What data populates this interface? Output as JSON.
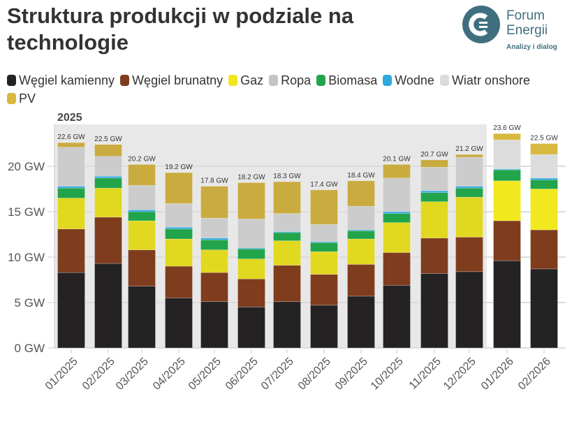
{
  "title": "Struktura produkcji w podziale na technologie",
  "logo": {
    "line1": "Forum",
    "line2": "Energii",
    "tagline": "Analizy i dialog"
  },
  "chart_data": {
    "type": "bar",
    "stacked": true,
    "title": "Struktura produkcji w podziale na technologie",
    "period_label": "2025",
    "categories": [
      "01/2025",
      "02/2025",
      "03/2025",
      "04/2025",
      "05/2025",
      "06/2025",
      "07/2025",
      "08/2025",
      "09/2025",
      "10/2025",
      "11/2025",
      "12/2025",
      "01/2026",
      "02/2026"
    ],
    "totals": [
      "22.6 GW",
      "22.5 GW",
      "20.2 GW",
      "19.2 GW",
      "17.8 GW",
      "18.2 GW",
      "18.3 GW",
      "17.4 GW",
      "18.4 GW",
      "20.1 GW",
      "20.7 GW",
      "21.2 GW",
      "23.6 GW",
      "22.5 GW"
    ],
    "series": [
      {
        "name": "Węgiel kamienny",
        "color": "#242223",
        "values": [
          8.3,
          9.3,
          6.8,
          5.5,
          5.1,
          4.5,
          5.1,
          4.7,
          5.7,
          6.9,
          8.2,
          8.4,
          9.6,
          8.7
        ]
      },
      {
        "name": "Węgiel brunatny",
        "color": "#7f3d1e",
        "values": [
          4.8,
          5.1,
          4.0,
          3.5,
          3.2,
          3.1,
          4.0,
          3.4,
          3.5,
          3.6,
          3.9,
          3.8,
          4.4,
          4.3
        ]
      },
      {
        "name": "Gaz",
        "color": "#e1d820",
        "values": [
          3.4,
          3.2,
          3.2,
          3.0,
          2.5,
          2.2,
          2.7,
          2.5,
          2.8,
          3.3,
          4.0,
          4.4,
          4.4,
          4.5
        ]
      },
      {
        "name": "Biomasa",
        "color": "#22a44a",
        "values": [
          1.1,
          1.1,
          1.0,
          1.1,
          1.1,
          1.1,
          0.9,
          1.0,
          0.9,
          1.0,
          1.0,
          1.0,
          1.2,
          1.0
        ]
      },
      {
        "name": "Wodne",
        "color": "#2fa8e0",
        "values": [
          0.2,
          0.2,
          0.2,
          0.2,
          0.2,
          0.1,
          0.1,
          0.1,
          0.1,
          0.2,
          0.2,
          0.2,
          0.1,
          0.2
        ]
      },
      {
        "name": "Wiatr onshore",
        "color": "#cccccc",
        "values": [
          4.3,
          2.2,
          2.7,
          2.6,
          2.2,
          3.2,
          2.0,
          1.9,
          2.6,
          3.7,
          2.6,
          3.2,
          3.2,
          2.6
        ]
      },
      {
        "name": "PV",
        "color": "#c9ab40",
        "values": [
          0.5,
          1.3,
          2.3,
          3.4,
          3.5,
          4.0,
          3.5,
          3.8,
          2.8,
          1.5,
          0.8,
          0.3,
          0.7,
          1.2
        ]
      }
    ],
    "legend_order": [
      "Węgiel kamienny",
      "Węgiel brunatny",
      "Gaz",
      "Ropa",
      "Biomasa",
      "Wodne",
      "Wiatr onshore",
      "PV"
    ],
    "legend_colors": [
      "#242223",
      "#7f3d1e",
      "#f0e51e",
      "#c3c3c3",
      "#22a44a",
      "#2fa8e0",
      "#dcdcdc",
      "#d7b940"
    ],
    "yticks": [
      "0 GW",
      "5 GW",
      "10 GW",
      "15 GW",
      "20 GW"
    ],
    "ylim": [
      0,
      24.6
    ],
    "grid": true,
    "legend_position": "top-left"
  }
}
